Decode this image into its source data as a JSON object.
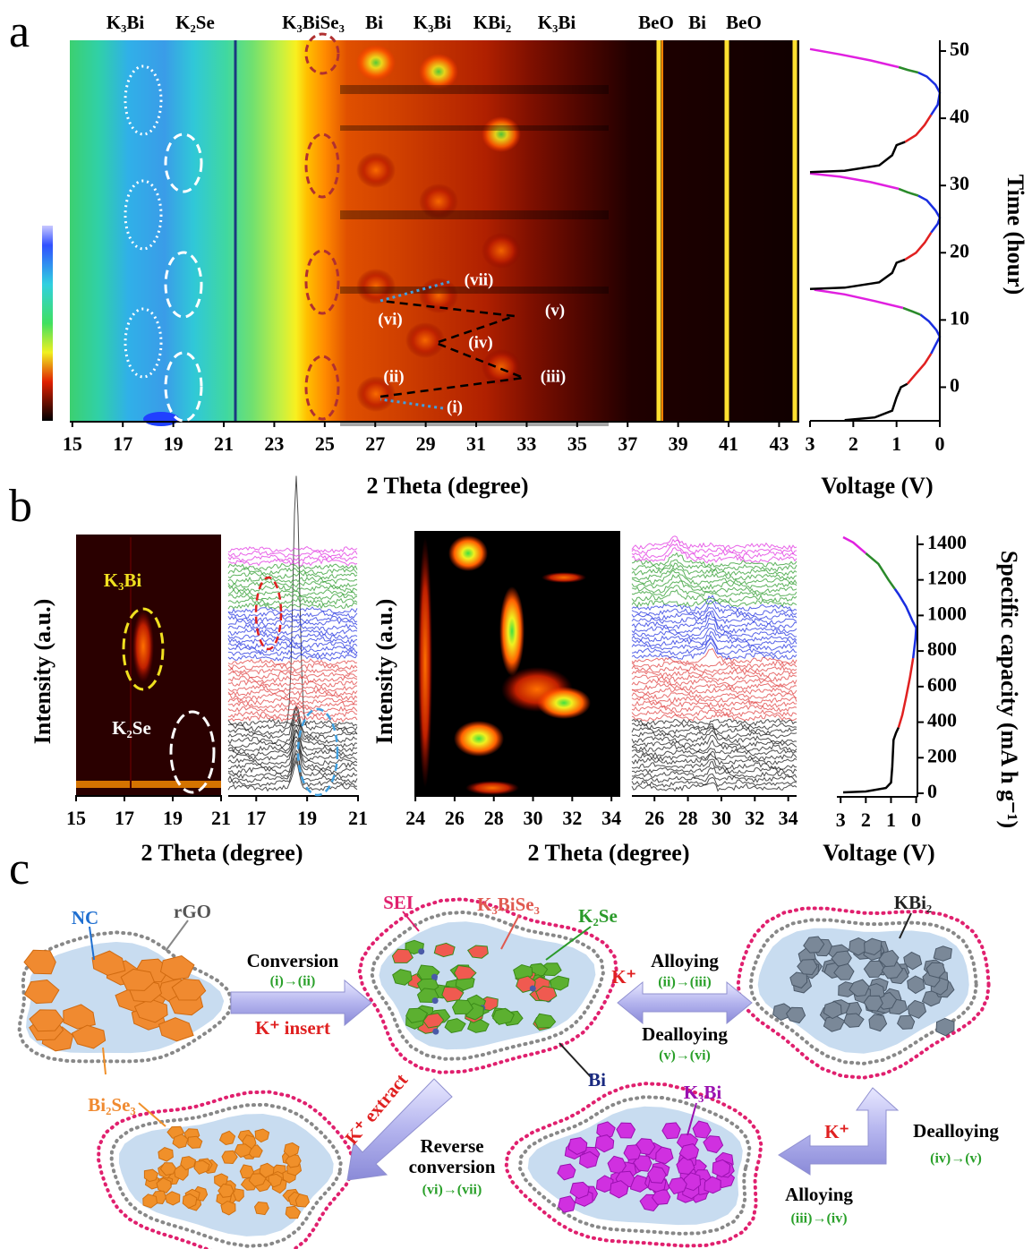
{
  "panel_labels": {
    "a": "a",
    "b": "b",
    "c": "c"
  },
  "chart_data": [
    {
      "type": "heatmap",
      "xlabel": "2 Theta (degree)",
      "xlim": [
        14.9,
        43.8
      ],
      "xticks": [
        15,
        17,
        19,
        21,
        23,
        25,
        27,
        29,
        31,
        33,
        35,
        37,
        39,
        41,
        43
      ],
      "phase_labels": [
        "K₃Bi",
        "K₂Se",
        "K₃BiSe₃",
        "Bi",
        "K₃Bi",
        "KBi₂",
        "K₃Bi",
        "BeO",
        "Bi",
        "BeO"
      ],
      "annotations": [
        "(i)",
        "(ii)",
        "(iii)",
        "(iv)",
        "(v)",
        "(vi)",
        "(vii)"
      ]
    },
    {
      "type": "line",
      "xlabel": "Voltage (V)",
      "ylabel": "Time (hour)",
      "xlim": [
        3,
        0
      ],
      "ylim": [
        -5,
        51.6
      ],
      "xticks": [
        3,
        2,
        1,
        0
      ],
      "yticks": [
        0,
        10,
        20,
        30,
        40,
        50
      ],
      "series": [
        {
          "color": "#000000",
          "x": [
            2.2,
            1.5,
            1.1,
            1.0,
            0.9,
            0.75
          ],
          "y": [
            -4.9,
            -4.5,
            -3.5,
            -1.5,
            0,
            0.5
          ]
        },
        {
          "color": "#e02020",
          "x": [
            0.75,
            0.55,
            0.35,
            0.2
          ],
          "y": [
            0.5,
            2,
            3.5,
            5
          ]
        },
        {
          "color": "#1a2ee0",
          "x": [
            0.2,
            0.08,
            0,
            0.08,
            0.25,
            0.45
          ],
          "y": [
            5,
            6.5,
            7.5,
            8.5,
            9.8,
            10.8
          ]
        },
        {
          "color": "#2a8a2a",
          "x": [
            0.45,
            0.65,
            0.85
          ],
          "y": [
            10.8,
            11.3,
            11.8
          ]
        },
        {
          "color": "#e020e0",
          "x": [
            0.85,
            1.5,
            2.2,
            2.9
          ],
          "y": [
            11.8,
            12.8,
            13.8,
            14.5
          ]
        },
        {
          "color": "#000000",
          "x": [
            3,
            2.2,
            1.4,
            1.1,
            1.0,
            0.8
          ],
          "y": [
            14.6,
            14.8,
            15.6,
            17,
            18.5,
            19
          ]
        },
        {
          "color": "#e02020",
          "x": [
            0.8,
            0.55,
            0.35,
            0.2
          ],
          "y": [
            19,
            20,
            21.5,
            23
          ]
        },
        {
          "color": "#1a2ee0",
          "x": [
            0.2,
            0.05,
            0,
            0.1,
            0.3,
            0.5
          ],
          "y": [
            23,
            24.3,
            25.2,
            26.3,
            27.8,
            28.5
          ]
        },
        {
          "color": "#2a8a2a",
          "x": [
            0.5,
            0.75,
            0.95
          ],
          "y": [
            28.5,
            29,
            29.5
          ]
        },
        {
          "color": "#e020e0",
          "x": [
            0.95,
            1.6,
            2.3,
            3
          ],
          "y": [
            29.5,
            30.5,
            31.3,
            31.8
          ]
        },
        {
          "color": "#000000",
          "x": [
            3,
            2.2,
            1.4,
            1.1,
            1.0,
            0.8
          ],
          "y": [
            32,
            32.2,
            33,
            34.5,
            36,
            36.5
          ]
        },
        {
          "color": "#e02020",
          "x": [
            0.8,
            0.55,
            0.35,
            0.2
          ],
          "y": [
            36.5,
            37.5,
            39,
            40.5
          ]
        },
        {
          "color": "#1a2ee0",
          "x": [
            0.2,
            0.05,
            0,
            0.1,
            0.3,
            0.5
          ],
          "y": [
            40.5,
            42,
            43.8,
            45,
            46.2,
            46.8
          ]
        },
        {
          "color": "#2a8a2a",
          "x": [
            0.5,
            0.75,
            0.95
          ],
          "y": [
            46.8,
            47.2,
            47.6
          ]
        },
        {
          "color": "#e020e0",
          "x": [
            0.95,
            1.6,
            2.3,
            3
          ],
          "y": [
            47.6,
            48.6,
            49.5,
            50.3
          ]
        }
      ]
    },
    {
      "type": "heatmap",
      "xlabel": "2 Theta (degree)",
      "ylabel": "Intensity (a.u.)",
      "xlim": [
        15,
        21
      ],
      "xticks": [
        15,
        17,
        19,
        21
      ],
      "annotations": [
        "K₃Bi",
        "K₂Se"
      ]
    },
    {
      "type": "stacked_spectra",
      "xlim": [
        15.9,
        21
      ],
      "xticks": [
        17,
        19,
        21
      ]
    },
    {
      "type": "heatmap",
      "xlabel": "2 Theta (degree)",
      "ylabel": "Intensity (a.u.)",
      "xlim": [
        23.95,
        34.45
      ],
      "xticks": [
        24,
        26,
        28,
        30,
        32,
        34
      ]
    },
    {
      "type": "stacked_spectra",
      "xlim": [
        24.65,
        34.5
      ],
      "xticks": [
        26,
        28,
        30,
        32,
        34
      ]
    },
    {
      "type": "line",
      "xlabel": "Voltage (V)",
      "ylabel": "Specific capacity (mA h g⁻¹)",
      "xlim": [
        3.15,
        -0.05
      ],
      "ylim": [
        -20,
        1450
      ],
      "xticks": [
        3,
        2,
        1,
        0
      ],
      "yticks": [
        0,
        200,
        400,
        600,
        800,
        1000,
        1200,
        1400
      ],
      "series": [
        {
          "color": "#000000",
          "x": [
            2.9,
            2,
            1.2,
            1.0,
            0.95,
            0.9,
            0.8,
            0.7
          ],
          "y": [
            5,
            10,
            30,
            60,
            150,
            300,
            340,
            370
          ]
        },
        {
          "color": "#e02020",
          "x": [
            0.7,
            0.55,
            0.4,
            0.25,
            0.12
          ],
          "y": [
            370,
            440,
            540,
            650,
            760
          ]
        },
        {
          "color": "#1a2ee0",
          "x": [
            0.12,
            0.03,
            0,
            0.15,
            0.4,
            0.7,
            0.85
          ],
          "y": [
            760,
            870,
            930,
            970,
            1050,
            1120,
            1150
          ]
        },
        {
          "color": "#2a8a2a",
          "x": [
            0.85,
            1.1,
            1.5,
            2.0
          ],
          "y": [
            1150,
            1200,
            1290,
            1350
          ]
        },
        {
          "color": "#e020e0",
          "x": [
            2.0,
            2.5,
            2.9
          ],
          "y": [
            1350,
            1410,
            1440
          ]
        }
      ]
    }
  ],
  "diagram": {
    "nc": "NC",
    "rgo": "rGO",
    "conversion": "Conversion",
    "step_i_ii": "(i)→(ii)",
    "k_insert": "K⁺ insert",
    "sei": "SEI",
    "k3bise3": "K₃BiSe₃",
    "k2se": "K₂Se",
    "k_plus_1": "K⁺",
    "alloying_1": "Alloying",
    "step_ii_iii": "(ii)→(iii)",
    "dealloying_1": "Dealloying",
    "step_v_vi": "(v)→(vi)",
    "kbi2": "KBi₂",
    "bi": "Bi",
    "bi2se3": "Bi₂Se₃",
    "k_extract": "K⁺ extract",
    "reverse_conversion": [
      "Reverse",
      "conversion"
    ],
    "step_vi_vii": "(vi)→(vii)",
    "k3bi": "K₃Bi",
    "k_plus_2": "K⁺",
    "dealloying_2": "Dealloying",
    "step_iv_v": "(iv)→(v)",
    "alloying_2": "Alloying",
    "step_iii_iv": "(iii)→(iv)"
  }
}
